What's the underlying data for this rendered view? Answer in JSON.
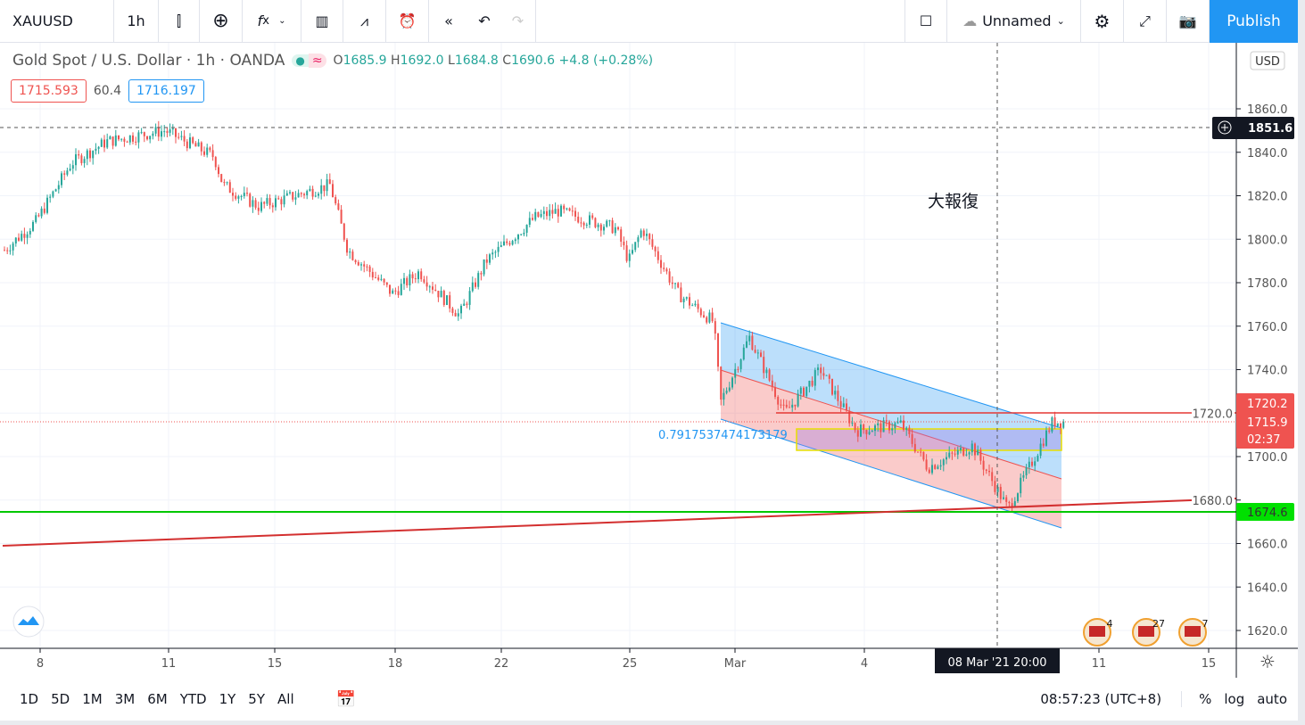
{
  "toolbar": {
    "symbol": "XAUUSD",
    "interval": "1h",
    "layout_name": "Unnamed",
    "publish": "Publish",
    "icons": [
      "candles-icon",
      "add-icon",
      "indicators-fx-icon",
      "chevron-down-icon",
      "financials-icon",
      "templates-icon",
      "alert-icon",
      "replay-icon",
      "undo-icon",
      "redo-icon",
      "layout-square-icon",
      "cloud-icon",
      "settings-gear-icon",
      "fullscreen-icon",
      "camera-icon"
    ]
  },
  "legend": {
    "title": "Gold Spot / U.S. Dollar · 1h · OANDA",
    "o_label": "O",
    "o": "1685.9",
    "h_label": "H",
    "h": "1692.0",
    "l_label": "L",
    "l": "1684.8",
    "c_label": "C",
    "c": "1690.6",
    "change": "+4.8 (+0.28%)",
    "bid": "1715.593",
    "spread": "60.4",
    "ask": "1716.197"
  },
  "chart_data": {
    "type": "candlestick",
    "price_ticks": [
      "1860.0",
      "1840.0",
      "1820.0",
      "1800.0",
      "1780.0",
      "1760.0",
      "1740.0",
      "1720.0",
      "1700.0",
      "1680.0",
      "1660.0",
      "1640.0",
      "1620.0"
    ],
    "time_ticks": [
      "8",
      "11",
      "15",
      "18",
      "22",
      "25",
      "Mar",
      "4",
      "11",
      "15"
    ],
    "currency": "USD",
    "crosshair_price": "1851.6",
    "crosshair_time": "08 Mar '21   20:00",
    "labels": {
      "red_line": "1720.2",
      "last_price": "1715.9",
      "countdown": "02:37",
      "green_line": "1674.6"
    },
    "annotations": {
      "fib_value": "0.7917537474173179",
      "note": "大報復"
    },
    "event_counts": [
      "4",
      "27",
      "7"
    ],
    "colors": {
      "up": "#26a69a",
      "down": "#ef5350",
      "green_line": "#00e000",
      "red_line": "#e53935",
      "publish": "#2196f3"
    }
  },
  "bottom": {
    "ranges": [
      "1D",
      "5D",
      "1M",
      "3M",
      "6M",
      "YTD",
      "1Y",
      "5Y",
      "All"
    ],
    "clock": "08:57:23 (UTC+8)",
    "pct": "%",
    "log": "log",
    "auto": "auto"
  }
}
